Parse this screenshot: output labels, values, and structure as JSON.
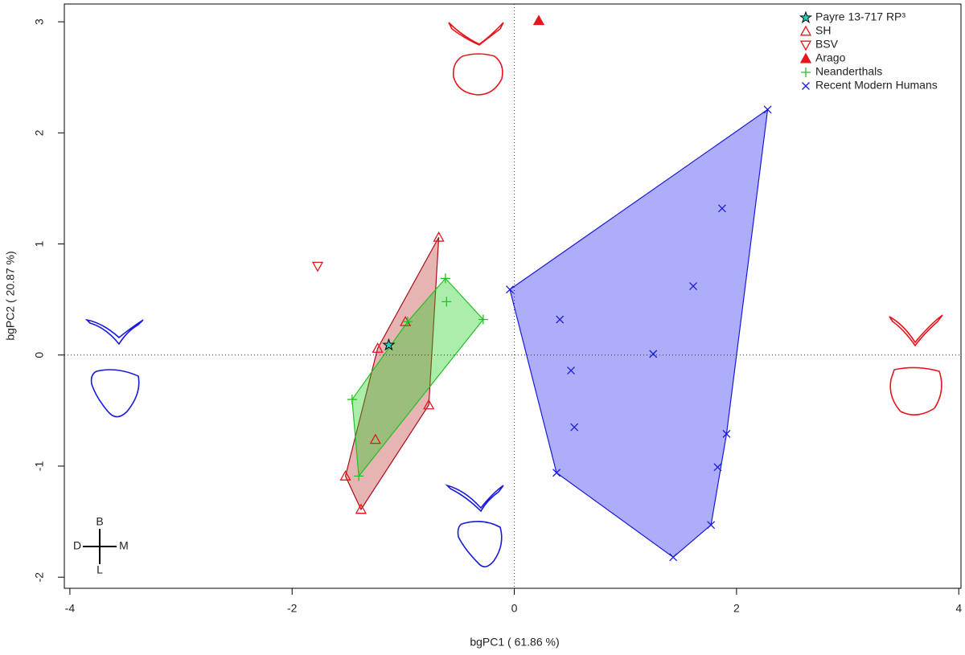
{
  "chart_data": {
    "type": "scatter",
    "x_label": "bgPC1 ( 61.86 %)",
    "y_label": "bgPC2 ( 20.87 %)",
    "xlim": [
      -4.05,
      4.02
    ],
    "ylim": [
      -2.1,
      3.16
    ],
    "xticks": [
      -4,
      -2,
      0,
      2,
      4
    ],
    "yticks": [
      -2,
      -1,
      0,
      1,
      2,
      3
    ],
    "zero_lines": true,
    "hulls": true,
    "legend": "top-right",
    "compass": {
      "top": "B",
      "left": "D",
      "right": "M",
      "bottom": "L"
    },
    "series": [
      {
        "name": "Payre 13-717 RP³",
        "color": "#000000",
        "fill": "#20d0c0",
        "marker": "star",
        "hull": false,
        "x": [
          -1.13
        ],
        "values": [
          0.09
        ]
      },
      {
        "name": "SH",
        "color": "#e8141c",
        "marker": "triangle-open",
        "hull": true,
        "hull_stroke": "#a51018",
        "hull_fill": "#c0393b",
        "x": [
          -0.68,
          -0.98,
          -1.23,
          -0.77,
          -1.25,
          -1.52,
          -1.38
        ],
        "values": [
          1.06,
          0.3,
          0.06,
          -0.45,
          -0.76,
          -1.09,
          -1.39
        ]
      },
      {
        "name": "BSV",
        "color": "#e8141c",
        "marker": "triangle-down-open",
        "hull": false,
        "x": [
          -1.77
        ],
        "values": [
          0.8
        ]
      },
      {
        "name": "Arago",
        "color": "#e8141c",
        "marker": "triangle-filled",
        "hull": false,
        "x": [
          0.22
        ],
        "values": [
          3.01
        ]
      },
      {
        "name": "Neanderthals",
        "color": "#22c022",
        "marker": "plus",
        "hull": true,
        "hull_stroke": "#22c022",
        "hull_fill": "#22d022",
        "x": [
          -0.62,
          -0.61,
          -0.28,
          -0.96,
          -1.46,
          -1.4
        ],
        "values": [
          0.69,
          0.48,
          0.32,
          0.3,
          -0.4,
          -1.09
        ]
      },
      {
        "name": "Recent Modern Humans",
        "color": "#1a1adc",
        "marker": "cross",
        "hull": true,
        "hull_stroke": "#1a1adc",
        "hull_fill": "#2828f0",
        "x": [
          2.28,
          1.87,
          1.61,
          -0.04,
          0.41,
          1.25,
          0.51,
          0.54,
          1.91,
          1.83,
          0.38,
          1.77,
          1.43
        ],
        "values": [
          2.21,
          1.32,
          0.62,
          0.59,
          0.32,
          0.01,
          -0.14,
          -0.65,
          -0.71,
          -1.01,
          -1.06,
          -1.53,
          -1.82
        ]
      }
    ]
  }
}
